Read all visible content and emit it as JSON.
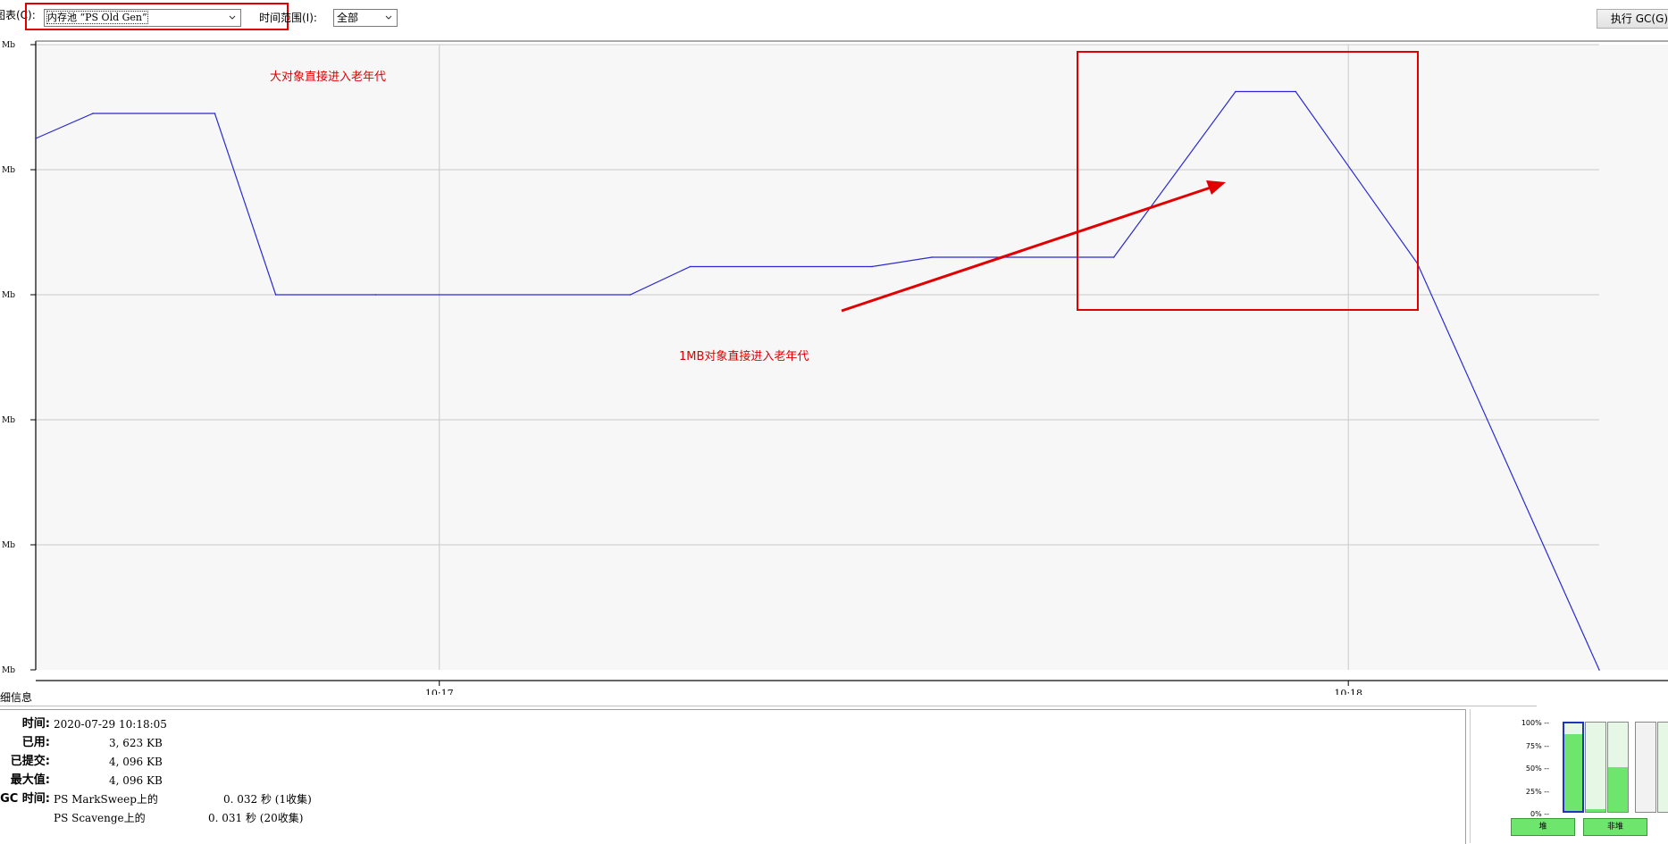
{
  "toolbar": {
    "chart_label": "图表(C):",
    "chart_value": "内存池 “PS Old Gen”",
    "range_label": "时间范围(I):",
    "range_value": "全部",
    "gc_button": "执行 GC(G)"
  },
  "chart_data": {
    "type": "line",
    "title": "内存池 “PS Old Gen”",
    "y_tick_labels": [
      "Mb",
      "Mb",
      "Mb",
      "Mb",
      "Mb",
      "Mb"
    ],
    "x_tick_labels": [
      "10:17",
      "10:18"
    ],
    "series": [
      {
        "name": "已用",
        "color": "#2a2ad0",
        "x_minutes": [
          16.556,
          16.619,
          16.753,
          16.82,
          16.93,
          17.21,
          17.276,
          17.476,
          17.542,
          17.742,
          17.876,
          17.942,
          18.076,
          18.276
        ],
        "y_mb": [
          3.4,
          3.56,
          3.56,
          2.4,
          2.4,
          2.4,
          2.58,
          2.58,
          2.64,
          2.64,
          3.7,
          3.7,
          2.6,
          0
        ]
      }
    ],
    "ylim": [
      0,
      4.0
    ],
    "current_value_label": "已用",
    "current_value": "0",
    "grid": true,
    "annotations": [
      "大对象直接进入老年代",
      "1MB对象直接进入老年代"
    ]
  },
  "details": {
    "title": "详细信息",
    "rows": [
      {
        "label": "时间:",
        "value": "2020-07-29 10:18:05"
      },
      {
        "label": "已用:",
        "value": "3, 623 KB"
      },
      {
        "label": "已提交:",
        "value": "4, 096 KB"
      },
      {
        "label": "最大值:",
        "value": "4, 096 KB"
      }
    ],
    "gc_label": "GC 时间:",
    "gc_rows": [
      {
        "name": "PS MarkSweep上的",
        "time": "0. 032  秒 (1收集)"
      },
      {
        "name": "PS Scavenge上的",
        "time": "0. 031  秒 (20收集)"
      }
    ]
  },
  "pool_panel": {
    "pct_labels": [
      "100% --",
      "75% --",
      "50% --",
      "25% --",
      "0% --"
    ],
    "heap_label": "堆",
    "nonheap_label": "非堆",
    "heap_fill_pct": [
      88,
      3,
      50
    ],
    "nonheap_fill_pct": [
      0,
      0,
      0
    ]
  }
}
